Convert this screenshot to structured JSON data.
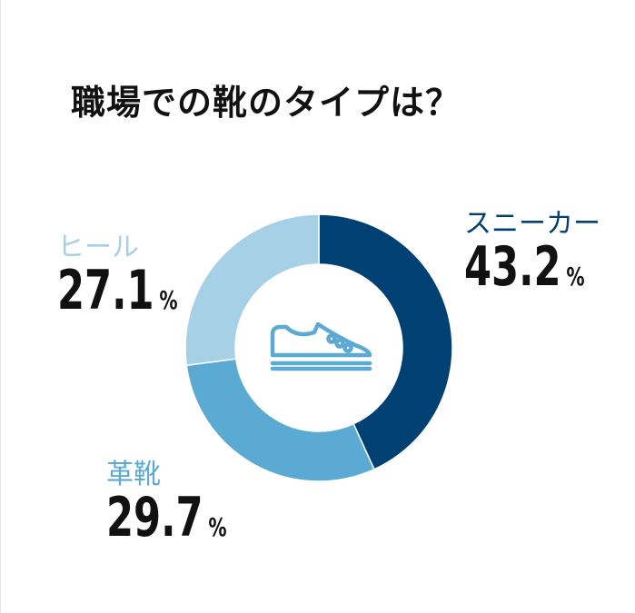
{
  "title": "職場での靴のタイプは？",
  "colors": {
    "sneaker": "#004072",
    "leather": "#5aaad4",
    "heel": "#a6d0e6",
    "icon": "#5aaad4"
  },
  "icon_name": "shoe-icon",
  "chart_data": {
    "type": "pie",
    "title": "職場での靴のタイプは？",
    "donut": true,
    "unit": "%",
    "slices": [
      {
        "label": "スニーカー",
        "value": 43.2,
        "display": "43.2"
      },
      {
        "label": "革靴",
        "value": 29.7,
        "display": "29.7"
      },
      {
        "label": "ヒール",
        "value": 27.1,
        "display": "27.1"
      }
    ]
  }
}
